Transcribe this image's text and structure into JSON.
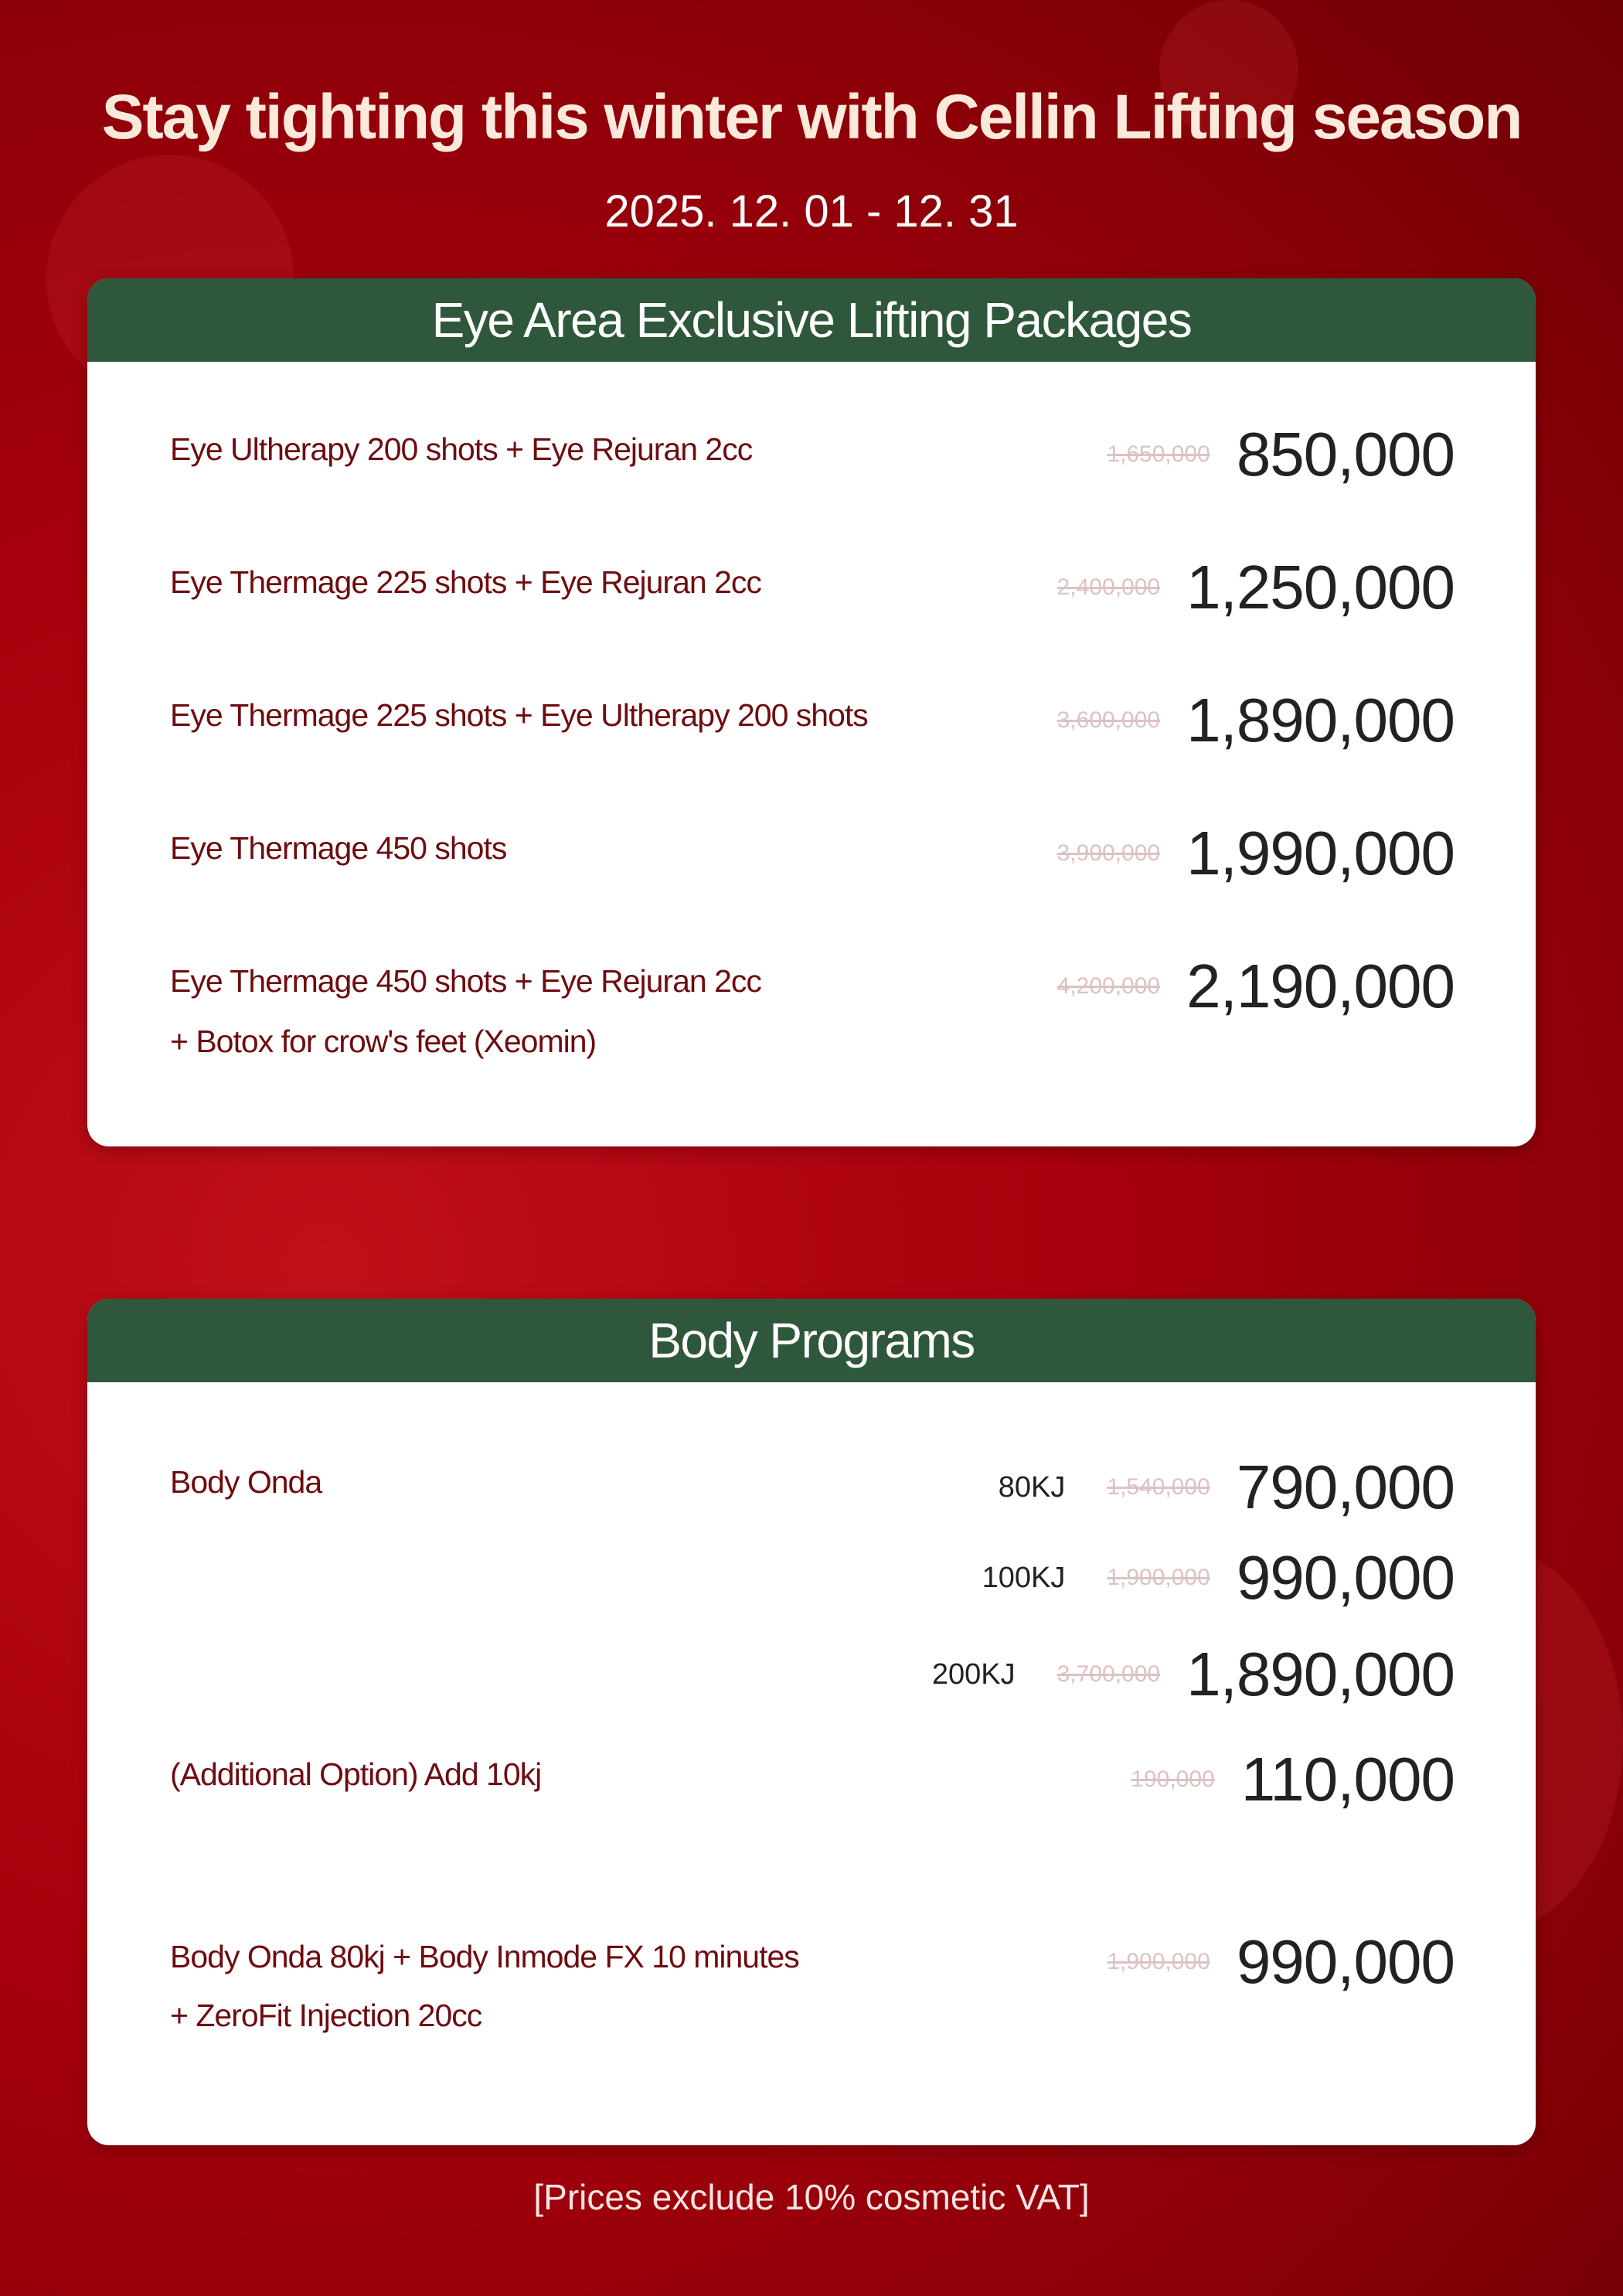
{
  "header": {
    "title": "Stay tighting this winter with Cellin Lifting season",
    "date": "2025. 12. 01 - 12. 31"
  },
  "eye": {
    "title": "Eye Area Exclusive Lifting Packages",
    "items": [
      {
        "name": "Eye Ultherapy 200 shots + Eye Rejuran 2cc",
        "old": "1,650,000",
        "price": "850,000"
      },
      {
        "name": "Eye Thermage 225 shots + Eye Rejuran 2cc",
        "old": "2,400,000",
        "price": "1,250,000"
      },
      {
        "name": "Eye Thermage 225 shots + Eye Ultherapy 200 shots",
        "old": "3,600,000",
        "price": "1,890,000"
      },
      {
        "name": "Eye Thermage 450 shots",
        "old": "3,900,000",
        "price": "1,990,000"
      },
      {
        "name": "Eye Thermage 450 shots + Eye Rejuran 2cc",
        "name2": "+ Botox for crow's feet (Xeomin)",
        "old": "4,200,000",
        "price": "2,190,000"
      }
    ]
  },
  "body": {
    "title": "Body Programs",
    "onda_name": "Body Onda",
    "onda": [
      {
        "kj": "80KJ",
        "old": "1,540,000",
        "price": "790,000"
      },
      {
        "kj": "100KJ",
        "old": "1,900,000",
        "price": "990,000"
      },
      {
        "kj": "200KJ",
        "old": "3,700,000",
        "price": "1,890,000"
      }
    ],
    "addon": {
      "name": "(Additional Option) Add 10kj",
      "old": "190,000",
      "price": "110,000"
    },
    "combo": {
      "name": "Body Onda 80kj + Body Inmode FX 10 minutes",
      "name2": "+ ZeroFit Injection 20cc",
      "old": "1,900,000",
      "price": "990,000"
    }
  },
  "footer": "[Prices exclude 10% cosmetic VAT]",
  "colors": {
    "background": "#a8000c",
    "header_bar": "#2f573b",
    "item_text": "#6e0c10",
    "old_price": "#dcc2c4"
  }
}
